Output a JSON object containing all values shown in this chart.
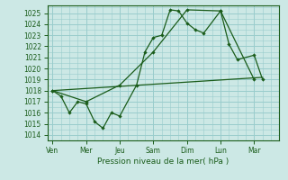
{
  "xlabel": "Pression niveau de la mer( hPa )",
  "background_color": "#cce8e5",
  "grid_color": "#99cccc",
  "line_color": "#1a5c1a",
  "ylim": [
    1013.5,
    1025.7
  ],
  "xlim": [
    -0.3,
    13.5
  ],
  "x_tick_labels": [
    "Ven",
    "Mer",
    "Jeu",
    "Sam",
    "Dim",
    "Lun",
    "Mar"
  ],
  "x_tick_positions": [
    0,
    2,
    4,
    6,
    8,
    10,
    12
  ],
  "yticks": [
    1014,
    1015,
    1016,
    1017,
    1018,
    1019,
    1020,
    1021,
    1022,
    1023,
    1024,
    1025
  ],
  "series1_x": [
    0,
    0.5,
    1.0,
    1.5,
    2.0,
    2.5,
    3.0,
    3.5,
    4.0,
    5.0,
    5.5,
    6.0,
    6.5,
    7.0,
    7.5,
    8.0,
    8.5,
    9.0,
    10.0,
    10.5,
    11.0,
    12.0,
    12.5
  ],
  "series1_y": [
    1018.0,
    1017.5,
    1016.0,
    1017.0,
    1016.8,
    1015.2,
    1014.6,
    1016.0,
    1015.7,
    1018.5,
    1021.5,
    1022.8,
    1023.0,
    1025.3,
    1025.2,
    1024.1,
    1023.5,
    1023.2,
    1025.2,
    1022.2,
    1020.8,
    1021.2,
    1019.0
  ],
  "series2_x": [
    0,
    2,
    4,
    6,
    8,
    10,
    12
  ],
  "series2_y": [
    1018.0,
    1017.0,
    1018.5,
    1021.5,
    1025.3,
    1025.2,
    1019.0
  ],
  "series3_x": [
    0,
    12.5
  ],
  "series3_y": [
    1018.0,
    1019.2
  ]
}
